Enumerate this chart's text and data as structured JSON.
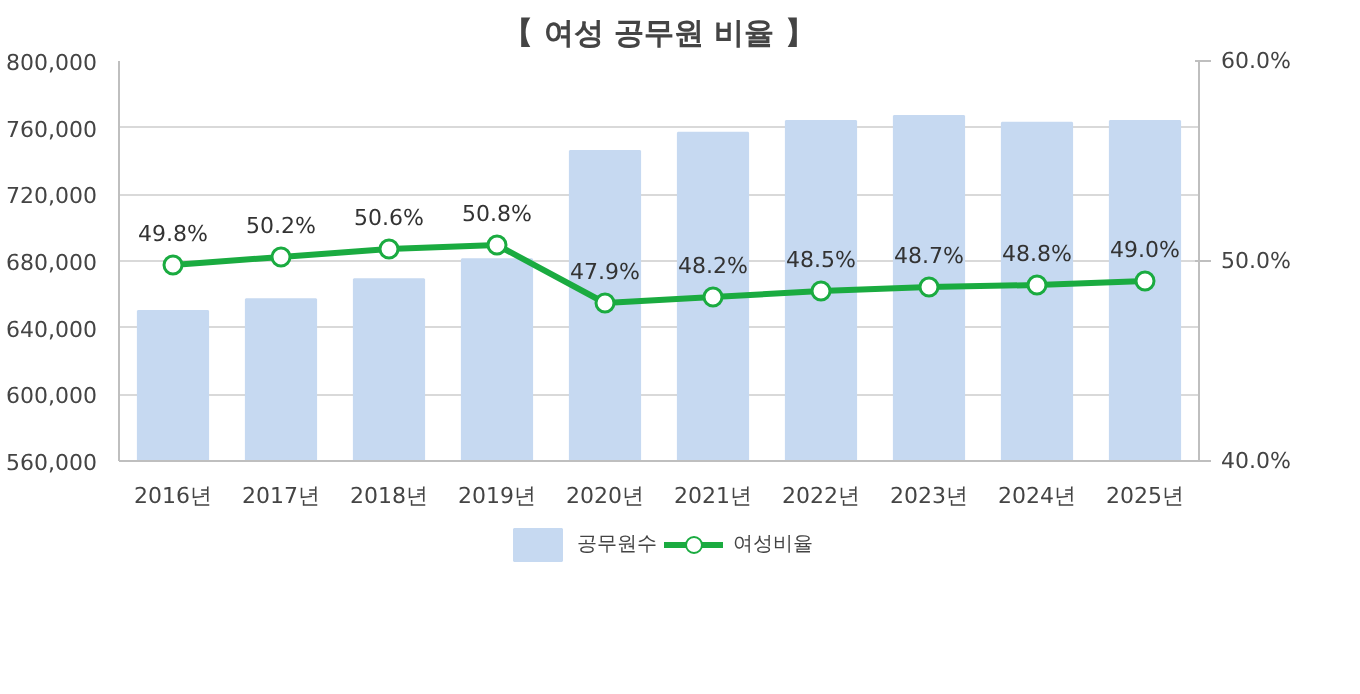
{
  "chart_data": {
    "type": "bar",
    "title": "【 여성 공무원 비율 】",
    "categories": [
      "2016년",
      "2017년",
      "2018년",
      "2019년",
      "2020년",
      "2021년",
      "2022년",
      "2023년",
      "2024년",
      "2025년"
    ],
    "series": [
      {
        "name": "공무원수",
        "color": "#c6d9f1",
        "values": [
          650000,
          657000,
          669000,
          681000,
          746000,
          757000,
          764000,
          767000,
          763000,
          764000
        ]
      },
      {
        "name": "여성비율",
        "type": "line",
        "axis": "y2",
        "color": "#1aab40",
        "marker": "circle",
        "values": [
          49.8,
          50.2,
          50.6,
          50.8,
          47.9,
          48.2,
          48.5,
          48.7,
          48.8,
          49.0
        ],
        "value_labels": [
          "49.8%",
          "50.2%",
          "50.6%",
          "50.8%",
          "47.9%",
          "48.2%",
          "48.5%",
          "48.7%",
          "48.8%",
          "49.0%"
        ]
      }
    ],
    "ylim": [
      560000,
      800000
    ],
    "yticks": [
      {
        "value": 560000,
        "label": "560,000"
      },
      {
        "value": 600000,
        "label": "600,000"
      },
      {
        "value": 640000,
        "label": "640,000"
      },
      {
        "value": 680000,
        "label": "680,000"
      },
      {
        "value": 720000,
        "label": "720,000"
      },
      {
        "value": 760000,
        "label": "760,000"
      },
      {
        "value": 800000,
        "label": "800,000"
      }
    ],
    "y2lim": [
      40,
      60
    ],
    "y2ticks": [
      {
        "value": 40,
        "label": "40.0%"
      },
      {
        "value": 50,
        "label": "50.0%"
      },
      {
        "value": 60,
        "label": "60.0%"
      }
    ],
    "grid": "y",
    "legend": "bottom"
  }
}
